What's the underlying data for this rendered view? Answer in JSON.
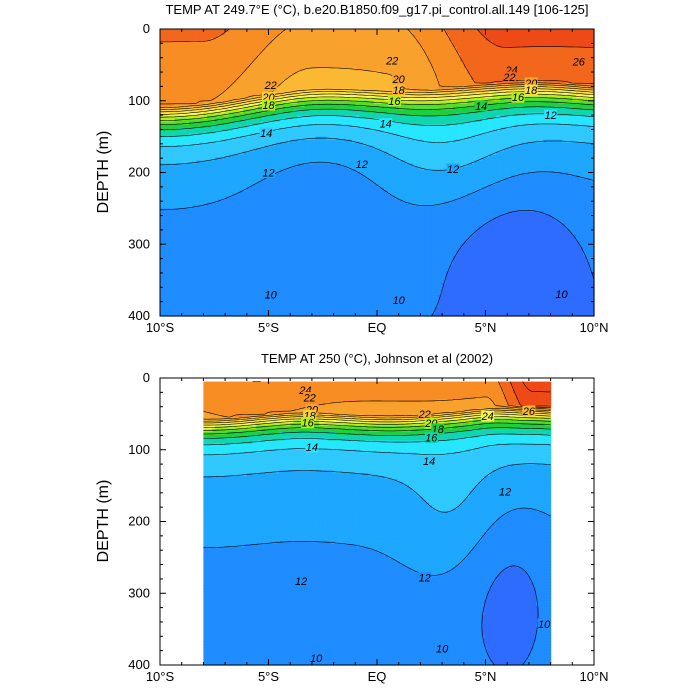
{
  "figure": {
    "palette": [
      "#1f40ff",
      "#2e6cff",
      "#1f8cff",
      "#1ea7ff",
      "#2fc8ff",
      "#27e6ff",
      "#10d6b0",
      "#1ecf41",
      "#56dd2a",
      "#b6ee1a",
      "#f6f75a",
      "#fde047",
      "#fdd036",
      "#fbb833",
      "#f9a12d",
      "#f78d23",
      "#f2671c",
      "#ee4a18"
    ],
    "line_color": "#000000"
  },
  "chart_data": [
    {
      "type": "contour",
      "title": "TEMP AT 249.7°E (°C), b.e20.B1850.f09_g17.pi_control.all.149 [106-125]",
      "xlabel": "",
      "ylabel": "DEPTH (m)",
      "xlim": [
        -10,
        10
      ],
      "ylim": [
        400,
        0
      ],
      "xticks": [
        -10,
        -5,
        0,
        5,
        10
      ],
      "xtick_labels": [
        "10°S",
        "5°S",
        "EQ",
        "5°N",
        "10°N"
      ],
      "yticks": [
        0,
        100,
        200,
        300,
        400
      ],
      "ytick_labels": [
        "0",
        "100",
        "200",
        "300",
        "400"
      ],
      "data_lat_range": [
        -10,
        10
      ],
      "levels": [
        9,
        10,
        11,
        12,
        13,
        14,
        15,
        16,
        17,
        18,
        19,
        20,
        21,
        22,
        23,
        24,
        25,
        26
      ],
      "contour_labels": [
        {
          "text": "26",
          "lat": 9.3,
          "depth": 45
        },
        {
          "text": "24",
          "lat": 6.2,
          "depth": 57
        },
        {
          "text": "22",
          "lat": 6.1,
          "depth": 67
        },
        {
          "text": "20",
          "lat": 7.1,
          "depth": 75
        },
        {
          "text": "18",
          "lat": 7.1,
          "depth": 85
        },
        {
          "text": "16",
          "lat": 6.5,
          "depth": 95
        },
        {
          "text": "14",
          "lat": 4.8,
          "depth": 107
        },
        {
          "text": "12",
          "lat": 8.0,
          "depth": 120
        },
        {
          "text": "22",
          "lat": 0.7,
          "depth": 44
        },
        {
          "text": "20",
          "lat": 1.0,
          "depth": 70
        },
        {
          "text": "18",
          "lat": 1.0,
          "depth": 85
        },
        {
          "text": "16",
          "lat": 0.8,
          "depth": 100
        },
        {
          "text": "14",
          "lat": 0.4,
          "depth": 132
        },
        {
          "text": "12",
          "lat": -0.7,
          "depth": 188
        },
        {
          "text": "12",
          "lat": 3.5,
          "depth": 195
        },
        {
          "text": "22",
          "lat": -4.9,
          "depth": 78
        },
        {
          "text": "20",
          "lat": -5.0,
          "depth": 95
        },
        {
          "text": "18",
          "lat": -5.0,
          "depth": 106
        },
        {
          "text": "14",
          "lat": -5.1,
          "depth": 145
        },
        {
          "text": "12",
          "lat": -5.0,
          "depth": 200
        },
        {
          "text": "10",
          "lat": -4.9,
          "depth": 370
        },
        {
          "text": "10",
          "lat": 1.0,
          "depth": 378
        },
        {
          "text": "10",
          "lat": 8.5,
          "depth": 369
        }
      ]
    },
    {
      "type": "contour",
      "title": "TEMP AT 250 (°C), Johnson et al (2002)",
      "xlabel": "",
      "ylabel": "DEPTH (m)",
      "xlim": [
        -10,
        10
      ],
      "ylim": [
        400,
        0
      ],
      "xticks": [
        -10,
        -5,
        0,
        5,
        10
      ],
      "xtick_labels": [
        "10°S",
        "5°S",
        "EQ",
        "5°N",
        "10°N"
      ],
      "yticks": [
        0,
        100,
        200,
        300,
        400
      ],
      "ytick_labels": [
        "0",
        "100",
        "200",
        "300",
        "400"
      ],
      "data_lat_range": [
        -8,
        8
      ],
      "levels": [
        9,
        10,
        11,
        12,
        13,
        14,
        15,
        16,
        17,
        18,
        19,
        20,
        21,
        22,
        23,
        24,
        25,
        26
      ],
      "contour_labels": [
        {
          "text": "24",
          "lat": -3.3,
          "depth": 17
        },
        {
          "text": "22",
          "lat": -3.1,
          "depth": 27
        },
        {
          "text": "20",
          "lat": -3.0,
          "depth": 44
        },
        {
          "text": "18",
          "lat": -3.1,
          "depth": 52
        },
        {
          "text": "16",
          "lat": -3.2,
          "depth": 62
        },
        {
          "text": "14",
          "lat": -3.0,
          "depth": 96
        },
        {
          "text": "22",
          "lat": 2.2,
          "depth": 50
        },
        {
          "text": "20",
          "lat": 2.5,
          "depth": 63
        },
        {
          "text": "18",
          "lat": 2.8,
          "depth": 71
        },
        {
          "text": "16",
          "lat": 2.5,
          "depth": 83
        },
        {
          "text": "24",
          "lat": 5.1,
          "depth": 53
        },
        {
          "text": "26",
          "lat": 7.0,
          "depth": 46
        },
        {
          "text": "14",
          "lat": 2.4,
          "depth": 116
        },
        {
          "text": "12",
          "lat": 5.9,
          "depth": 158
        },
        {
          "text": "12",
          "lat": -3.5,
          "depth": 283
        },
        {
          "text": "12",
          "lat": 2.2,
          "depth": 278
        },
        {
          "text": "10",
          "lat": -2.8,
          "depth": 390
        },
        {
          "text": "10",
          "lat": 3.0,
          "depth": 377
        },
        {
          "text": "10",
          "lat": 7.7,
          "depth": 343
        }
      ]
    }
  ]
}
